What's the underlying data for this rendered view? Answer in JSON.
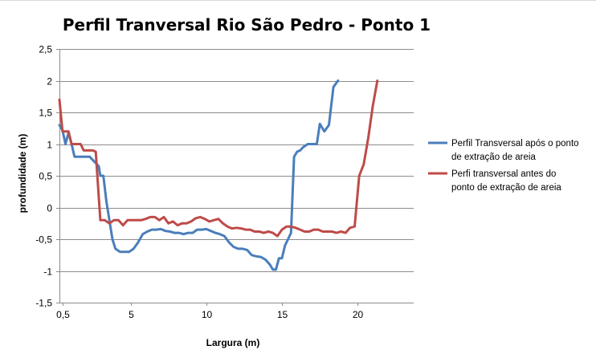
{
  "chart_data": {
    "type": "line",
    "title": "Perfil Tranversal Rio São Pedro - Ponto 1",
    "xlabel": "Largura (m)",
    "ylabel": "profundidade  (m)",
    "xlim": [
      0.3,
      23.7
    ],
    "ylim": [
      -1.5,
      2.5
    ],
    "x_ticks": [
      {
        "value": 0.5,
        "label": "0,5"
      },
      {
        "value": 5,
        "label": "5"
      },
      {
        "value": 10,
        "label": "10"
      },
      {
        "value": 15,
        "label": "15"
      },
      {
        "value": 20,
        "label": "20"
      }
    ],
    "y_ticks": [
      {
        "value": 2.5,
        "label": "2,5"
      },
      {
        "value": 2,
        "label": "2"
      },
      {
        "value": 1.5,
        "label": "1,5"
      },
      {
        "value": 1,
        "label": "1"
      },
      {
        "value": 0.5,
        "label": "0,5"
      },
      {
        "value": 0,
        "label": "0"
      },
      {
        "value": -0.5,
        "label": "-0,5"
      },
      {
        "value": -1,
        "label": "-1"
      },
      {
        "value": -1.5,
        "label": "-1,5"
      }
    ],
    "grid": "horizontal",
    "legend_position": "right",
    "series": [
      {
        "name": "Perfil Transversal após o ponto de extração de areia",
        "legend_lines": [
          "Perfil Transversal após o ponto",
          "de extração de areia"
        ],
        "color": "#4a7ebb",
        "points": [
          [
            0.3,
            1.3
          ],
          [
            0.5,
            1.22
          ],
          [
            0.7,
            1.0
          ],
          [
            0.9,
            1.18
          ],
          [
            1.1,
            1.0
          ],
          [
            1.3,
            0.8
          ],
          [
            1.5,
            0.8
          ],
          [
            1.7,
            0.8
          ],
          [
            2.0,
            0.8
          ],
          [
            2.3,
            0.8
          ],
          [
            2.5,
            0.75
          ],
          [
            2.7,
            0.7
          ],
          [
            2.9,
            0.65
          ],
          [
            3.0,
            0.5
          ],
          [
            3.2,
            0.5
          ],
          [
            3.4,
            0.1
          ],
          [
            3.6,
            -0.2
          ],
          [
            3.8,
            -0.5
          ],
          [
            4.0,
            -0.65
          ],
          [
            4.3,
            -0.7
          ],
          [
            4.6,
            -0.7
          ],
          [
            4.9,
            -0.7
          ],
          [
            5.2,
            -0.65
          ],
          [
            5.5,
            -0.55
          ],
          [
            5.8,
            -0.42
          ],
          [
            6.1,
            -0.38
          ],
          [
            6.4,
            -0.35
          ],
          [
            6.7,
            -0.35
          ],
          [
            7.0,
            -0.34
          ],
          [
            7.3,
            -0.37
          ],
          [
            7.6,
            -0.38
          ],
          [
            7.9,
            -0.4
          ],
          [
            8.2,
            -0.4
          ],
          [
            8.5,
            -0.42
          ],
          [
            8.8,
            -0.4
          ],
          [
            9.1,
            -0.4
          ],
          [
            9.4,
            -0.35
          ],
          [
            9.7,
            -0.35
          ],
          [
            10.0,
            -0.34
          ],
          [
            10.3,
            -0.37
          ],
          [
            10.6,
            -0.4
          ],
          [
            10.9,
            -0.42
          ],
          [
            11.2,
            -0.45
          ],
          [
            11.5,
            -0.55
          ],
          [
            11.8,
            -0.62
          ],
          [
            12.1,
            -0.65
          ],
          [
            12.4,
            -0.65
          ],
          [
            12.7,
            -0.67
          ],
          [
            13.0,
            -0.75
          ],
          [
            13.3,
            -0.77
          ],
          [
            13.6,
            -0.78
          ],
          [
            13.9,
            -0.82
          ],
          [
            14.2,
            -0.9
          ],
          [
            14.4,
            -0.98
          ],
          [
            14.6,
            -0.98
          ],
          [
            14.8,
            -0.8
          ],
          [
            15.0,
            -0.8
          ],
          [
            15.2,
            -0.6
          ],
          [
            15.4,
            -0.5
          ],
          [
            15.6,
            -0.4
          ],
          [
            15.8,
            0.8
          ],
          [
            16.0,
            0.88
          ],
          [
            16.2,
            0.9
          ],
          [
            16.4,
            0.95
          ],
          [
            16.7,
            1.0
          ],
          [
            17.0,
            1.0
          ],
          [
            17.3,
            1.0
          ],
          [
            17.5,
            1.32
          ],
          [
            17.8,
            1.2
          ],
          [
            18.1,
            1.3
          ],
          [
            18.4,
            1.9
          ],
          [
            18.7,
            2.0
          ]
        ]
      },
      {
        "name": "Perfi transversal antes do ponto de extração de areia",
        "legend_lines": [
          "Perfi transversal antes do",
          "ponto de extração de areia"
        ],
        "color": "#be4b48",
        "points": [
          [
            0.3,
            1.7
          ],
          [
            0.5,
            1.2
          ],
          [
            0.7,
            1.2
          ],
          [
            0.9,
            1.2
          ],
          [
            1.1,
            1.0
          ],
          [
            1.4,
            1.0
          ],
          [
            1.7,
            1.0
          ],
          [
            1.9,
            0.9
          ],
          [
            2.2,
            0.9
          ],
          [
            2.5,
            0.9
          ],
          [
            2.7,
            0.88
          ],
          [
            3.0,
            -0.2
          ],
          [
            3.3,
            -0.2
          ],
          [
            3.6,
            -0.25
          ],
          [
            3.9,
            -0.2
          ],
          [
            4.2,
            -0.2
          ],
          [
            4.5,
            -0.28
          ],
          [
            4.8,
            -0.2
          ],
          [
            5.1,
            -0.2
          ],
          [
            5.4,
            -0.2
          ],
          [
            5.7,
            -0.2
          ],
          [
            6.0,
            -0.18
          ],
          [
            6.3,
            -0.15
          ],
          [
            6.6,
            -0.15
          ],
          [
            6.9,
            -0.2
          ],
          [
            7.2,
            -0.15
          ],
          [
            7.5,
            -0.25
          ],
          [
            7.8,
            -0.22
          ],
          [
            8.1,
            -0.28
          ],
          [
            8.4,
            -0.25
          ],
          [
            8.7,
            -0.25
          ],
          [
            9.0,
            -0.22
          ],
          [
            9.3,
            -0.17
          ],
          [
            9.6,
            -0.15
          ],
          [
            9.9,
            -0.18
          ],
          [
            10.2,
            -0.22
          ],
          [
            10.5,
            -0.2
          ],
          [
            10.8,
            -0.18
          ],
          [
            11.1,
            -0.25
          ],
          [
            11.4,
            -0.3
          ],
          [
            11.7,
            -0.33
          ],
          [
            12.0,
            -0.32
          ],
          [
            12.3,
            -0.33
          ],
          [
            12.6,
            -0.35
          ],
          [
            12.9,
            -0.35
          ],
          [
            13.2,
            -0.38
          ],
          [
            13.5,
            -0.38
          ],
          [
            13.8,
            -0.4
          ],
          [
            14.1,
            -0.38
          ],
          [
            14.4,
            -0.4
          ],
          [
            14.7,
            -0.45
          ],
          [
            15.0,
            -0.35
          ],
          [
            15.3,
            -0.3
          ],
          [
            15.6,
            -0.3
          ],
          [
            15.9,
            -0.32
          ],
          [
            16.2,
            -0.35
          ],
          [
            16.5,
            -0.38
          ],
          [
            16.8,
            -0.38
          ],
          [
            17.1,
            -0.35
          ],
          [
            17.4,
            -0.35
          ],
          [
            17.7,
            -0.38
          ],
          [
            18.0,
            -0.38
          ],
          [
            18.3,
            -0.38
          ],
          [
            18.6,
            -0.4
          ],
          [
            18.9,
            -0.38
          ],
          [
            19.2,
            -0.4
          ],
          [
            19.5,
            -0.32
          ],
          [
            19.8,
            -0.3
          ],
          [
            20.1,
            0.5
          ],
          [
            20.4,
            0.68
          ],
          [
            20.7,
            1.1
          ],
          [
            21.0,
            1.6
          ],
          [
            21.3,
            2.0
          ]
        ]
      }
    ]
  }
}
